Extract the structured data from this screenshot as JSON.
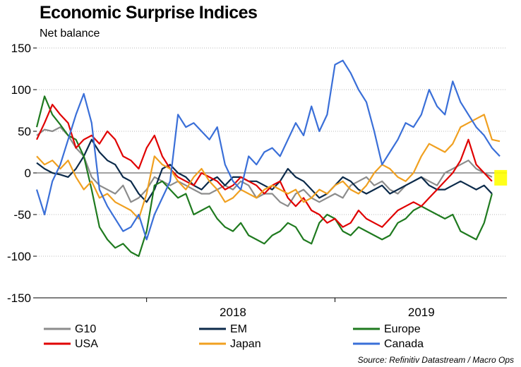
{
  "chart_data": {
    "type": "line",
    "title": "Economic Surprise Indices",
    "ylabel": "Net balance",
    "ylim": [
      -150,
      150
    ],
    "yticks": [
      150,
      100,
      50,
      0,
      -50,
      -100,
      -150
    ],
    "x_tick_labels": [
      "2018",
      "2019"
    ],
    "grid": "horizontal dotted",
    "source": "Source: Refinitiv Datastream / Macro Ops",
    "x_range_months": [
      0,
      29.5
    ],
    "x_note": "x = months since start of Jun 2017 (2018 begins at 7, 2019 at 19)",
    "series": [
      {
        "name": "G10",
        "color": "#8c8c8c",
        "x": [
          0,
          0.5,
          1,
          1.5,
          2,
          2.5,
          3,
          3.5,
          4,
          4.5,
          5,
          5.5,
          6,
          6.5,
          7,
          7.5,
          8,
          8.5,
          9,
          9.5,
          10,
          10.5,
          11,
          11.5,
          12,
          12.5,
          13,
          13.5,
          14,
          14.5,
          15,
          15.5,
          16,
          16.5,
          17,
          17.5,
          18,
          18.5,
          19,
          19.5,
          20,
          20.5,
          21,
          21.5,
          22,
          22.5,
          23,
          23.5,
          24,
          24.5,
          25,
          25.5,
          26,
          26.5,
          27,
          27.5,
          28,
          28.5,
          29
        ],
        "values": [
          45,
          52,
          50,
          55,
          45,
          30,
          20,
          -5,
          -15,
          -20,
          -25,
          -15,
          -35,
          -30,
          -20,
          -5,
          -10,
          -15,
          -10,
          -15,
          -20,
          -25,
          -25,
          -20,
          -15,
          -20,
          -10,
          -15,
          -30,
          -25,
          -25,
          -35,
          -40,
          -25,
          -20,
          -30,
          -35,
          -30,
          -25,
          -30,
          -15,
          -10,
          -5,
          -15,
          -10,
          -20,
          -25,
          -15,
          -10,
          -5,
          -10,
          -15,
          0,
          5,
          10,
          15,
          5,
          0,
          -5
        ]
      },
      {
        "name": "EM",
        "color": "#0b2a4a",
        "x": [
          0,
          0.5,
          1,
          1.5,
          2,
          2.5,
          3,
          3.5,
          4,
          4.5,
          5,
          5.5,
          6,
          6.5,
          7,
          7.5,
          8,
          8.5,
          9,
          9.5,
          10,
          10.5,
          11,
          11.5,
          12,
          12.5,
          13,
          13.5,
          14,
          14.5,
          15,
          15.5,
          16,
          16.5,
          17,
          17.5,
          18,
          18.5,
          19,
          19.5,
          20,
          20.5,
          21,
          21.5,
          22,
          22.5,
          23,
          23.5,
          24,
          24.5,
          25,
          25.5,
          26,
          26.5,
          27,
          27.5,
          28,
          28.5,
          29
        ],
        "values": [
          12,
          5,
          0,
          -2,
          -5,
          5,
          20,
          40,
          25,
          15,
          10,
          -5,
          -10,
          -25,
          -35,
          -20,
          5,
          10,
          0,
          -5,
          -15,
          -20,
          -10,
          -5,
          -15,
          -5,
          -5,
          -10,
          -10,
          -15,
          -20,
          -10,
          5,
          -5,
          -10,
          -20,
          -30,
          -25,
          -15,
          -5,
          -10,
          -20,
          -25,
          -20,
          -15,
          -25,
          -20,
          -15,
          -10,
          -5,
          -15,
          -20,
          -20,
          -15,
          -10,
          -15,
          -20,
          -15,
          -25
        ]
      },
      {
        "name": "Europe",
        "color": "#1f7a1f",
        "x": [
          0,
          0.5,
          1,
          1.5,
          2,
          2.5,
          3,
          3.5,
          4,
          4.5,
          5,
          5.5,
          6,
          6.5,
          7,
          7.5,
          8,
          8.5,
          9,
          9.5,
          10,
          10.5,
          11,
          11.5,
          12,
          12.5,
          13,
          13.5,
          14,
          14.5,
          15,
          15.5,
          16,
          16.5,
          17,
          17.5,
          18,
          18.5,
          19,
          19.5,
          20,
          20.5,
          21,
          21.5,
          22,
          22.5,
          23,
          23.5,
          24,
          24.5,
          25,
          25.5,
          26,
          26.5,
          27,
          27.5,
          28,
          28.5,
          29
        ],
        "values": [
          55,
          92,
          70,
          58,
          45,
          40,
          20,
          -20,
          -65,
          -80,
          -90,
          -85,
          -95,
          -100,
          -70,
          -15,
          -10,
          -20,
          -30,
          -25,
          -50,
          -45,
          -40,
          -55,
          -65,
          -70,
          -60,
          -75,
          -80,
          -85,
          -75,
          -70,
          -60,
          -65,
          -80,
          -85,
          -60,
          -50,
          -55,
          -70,
          -75,
          -65,
          -70,
          -75,
          -80,
          -75,
          -60,
          -55,
          -45,
          -40,
          -45,
          -50,
          -55,
          -50,
          -70,
          -75,
          -80,
          -60,
          -25
        ]
      },
      {
        "name": "USA",
        "color": "#e00000",
        "x": [
          0,
          0.5,
          1,
          1.5,
          2,
          2.5,
          3,
          3.5,
          4,
          4.5,
          5,
          5.5,
          6,
          6.5,
          7,
          7.5,
          8,
          8.5,
          9,
          9.5,
          10,
          10.5,
          11,
          11.5,
          12,
          12.5,
          13,
          13.5,
          14,
          14.5,
          15,
          15.5,
          16,
          16.5,
          17,
          17.5,
          18,
          18.5,
          19,
          19.5,
          20,
          20.5,
          21,
          21.5,
          22,
          22.5,
          23,
          23.5,
          24,
          24.5,
          25,
          25.5,
          26,
          26.5,
          27,
          27.5,
          28,
          28.5,
          29
        ],
        "values": [
          40,
          60,
          82,
          70,
          60,
          30,
          40,
          45,
          35,
          50,
          40,
          20,
          15,
          5,
          30,
          45,
          20,
          5,
          -5,
          -10,
          -15,
          0,
          -5,
          -10,
          -20,
          -15,
          -5,
          -10,
          -15,
          -25,
          -15,
          -10,
          -30,
          -40,
          -30,
          -45,
          -50,
          -60,
          -55,
          -65,
          -60,
          -45,
          -55,
          -60,
          -65,
          -55,
          -45,
          -40,
          -35,
          -40,
          -30,
          -20,
          -10,
          0,
          15,
          40,
          10,
          0,
          -10
        ]
      },
      {
        "name": "Japan",
        "color": "#f0a020",
        "x": [
          0,
          0.5,
          1,
          1.5,
          2,
          2.5,
          3,
          3.5,
          4,
          4.5,
          5,
          5.5,
          6,
          6.5,
          7,
          7.5,
          8,
          8.5,
          9,
          9.5,
          10,
          10.5,
          11,
          11.5,
          12,
          12.5,
          13,
          13.5,
          14,
          14.5,
          15,
          15.5,
          16,
          16.5,
          17,
          17.5,
          18,
          18.5,
          19,
          19.5,
          20,
          20.5,
          21,
          21.5,
          22,
          22.5,
          23,
          23.5,
          24,
          24.5,
          25,
          25.5,
          26,
          26.5,
          27,
          27.5,
          28,
          28.5,
          29,
          29.5
        ],
        "values": [
          20,
          10,
          15,
          5,
          15,
          -5,
          -20,
          -10,
          -30,
          -25,
          -35,
          -40,
          -45,
          -55,
          -25,
          20,
          10,
          5,
          -10,
          -20,
          -5,
          5,
          -10,
          -20,
          -35,
          -30,
          -20,
          -25,
          -30,
          -20,
          -15,
          -20,
          -25,
          -20,
          -35,
          -30,
          -20,
          -25,
          -15,
          -10,
          -20,
          -25,
          -15,
          0,
          10,
          5,
          -5,
          -10,
          0,
          20,
          35,
          30,
          25,
          35,
          55,
          60,
          65,
          70,
          40,
          38
        ]
      },
      {
        "name": "Canada",
        "color": "#3a6fd8",
        "x": [
          0,
          0.5,
          1,
          1.5,
          2,
          2.5,
          3,
          3.5,
          4,
          4.5,
          5,
          5.5,
          6,
          6.5,
          7,
          7.5,
          8,
          8.5,
          9,
          9.5,
          10,
          10.5,
          11,
          11.5,
          12,
          12.5,
          13,
          13.5,
          14,
          14.5,
          15,
          15.5,
          16,
          16.5,
          17,
          17.5,
          18,
          18.5,
          19,
          19.5,
          20,
          20.5,
          21,
          21.5,
          22,
          22.5,
          23,
          23.5,
          24,
          24.5,
          25,
          25.5,
          26,
          26.5,
          27,
          27.5,
          28,
          28.5,
          29,
          29.5
        ],
        "values": [
          -20,
          -50,
          -10,
          10,
          40,
          70,
          95,
          60,
          -20,
          -40,
          -55,
          -70,
          -65,
          -50,
          -80,
          -50,
          -30,
          -10,
          70,
          55,
          60,
          50,
          40,
          55,
          10,
          -10,
          -20,
          20,
          10,
          25,
          30,
          20,
          40,
          60,
          45,
          80,
          50,
          70,
          130,
          135,
          120,
          100,
          85,
          50,
          10,
          25,
          40,
          60,
          55,
          70,
          100,
          80,
          70,
          110,
          85,
          70,
          55,
          45,
          30,
          20
        ]
      }
    ]
  },
  "legend": {
    "items": [
      {
        "label": "G10",
        "color": "#8c8c8c"
      },
      {
        "label": "EM",
        "color": "#0b2a4a"
      },
      {
        "label": "Europe",
        "color": "#1f7a1f"
      },
      {
        "label": "USA",
        "color": "#e00000"
      },
      {
        "label": "Japan",
        "color": "#f0a020"
      },
      {
        "label": "Canada",
        "color": "#3a6fd8"
      }
    ]
  },
  "highlight": {
    "color": "#ffff00"
  }
}
